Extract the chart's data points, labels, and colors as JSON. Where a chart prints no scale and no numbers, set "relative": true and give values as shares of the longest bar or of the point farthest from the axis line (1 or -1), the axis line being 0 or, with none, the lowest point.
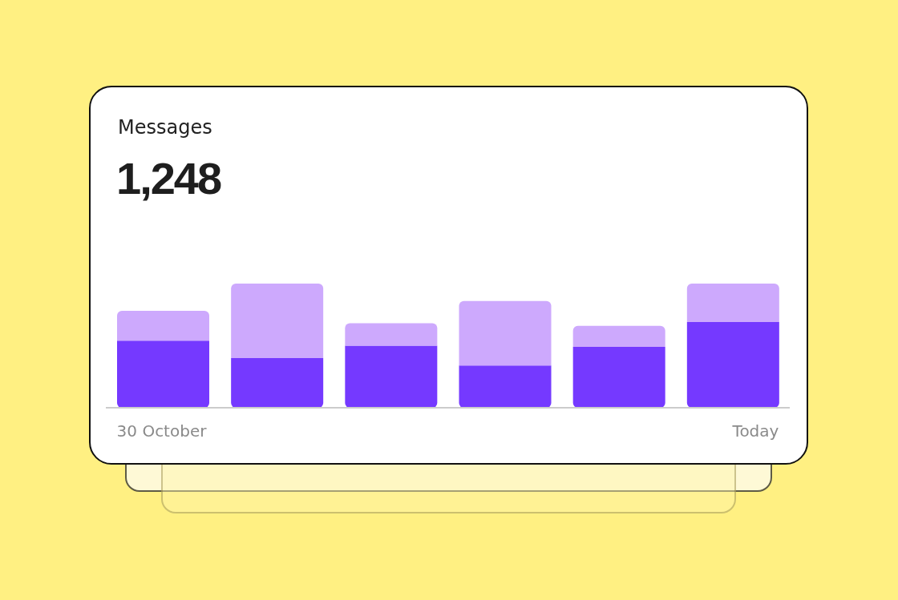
{
  "chart_data": {
    "type": "bar",
    "title": "Messages",
    "subtitle": "1,248",
    "categories": [
      "30 October",
      null,
      null,
      null,
      null,
      "Today"
    ],
    "series": [
      {
        "color": "#7539ff",
        "values": [
          0.54,
          0.4,
          0.5,
          0.34,
          0.49,
          0.69
        ]
      },
      {
        "color": "#cda9fd",
        "values": [
          0.24,
          0.6,
          0.18,
          0.52,
          0.17,
          0.31
        ]
      }
    ],
    "stacked": true,
    "relative": true
  }
}
